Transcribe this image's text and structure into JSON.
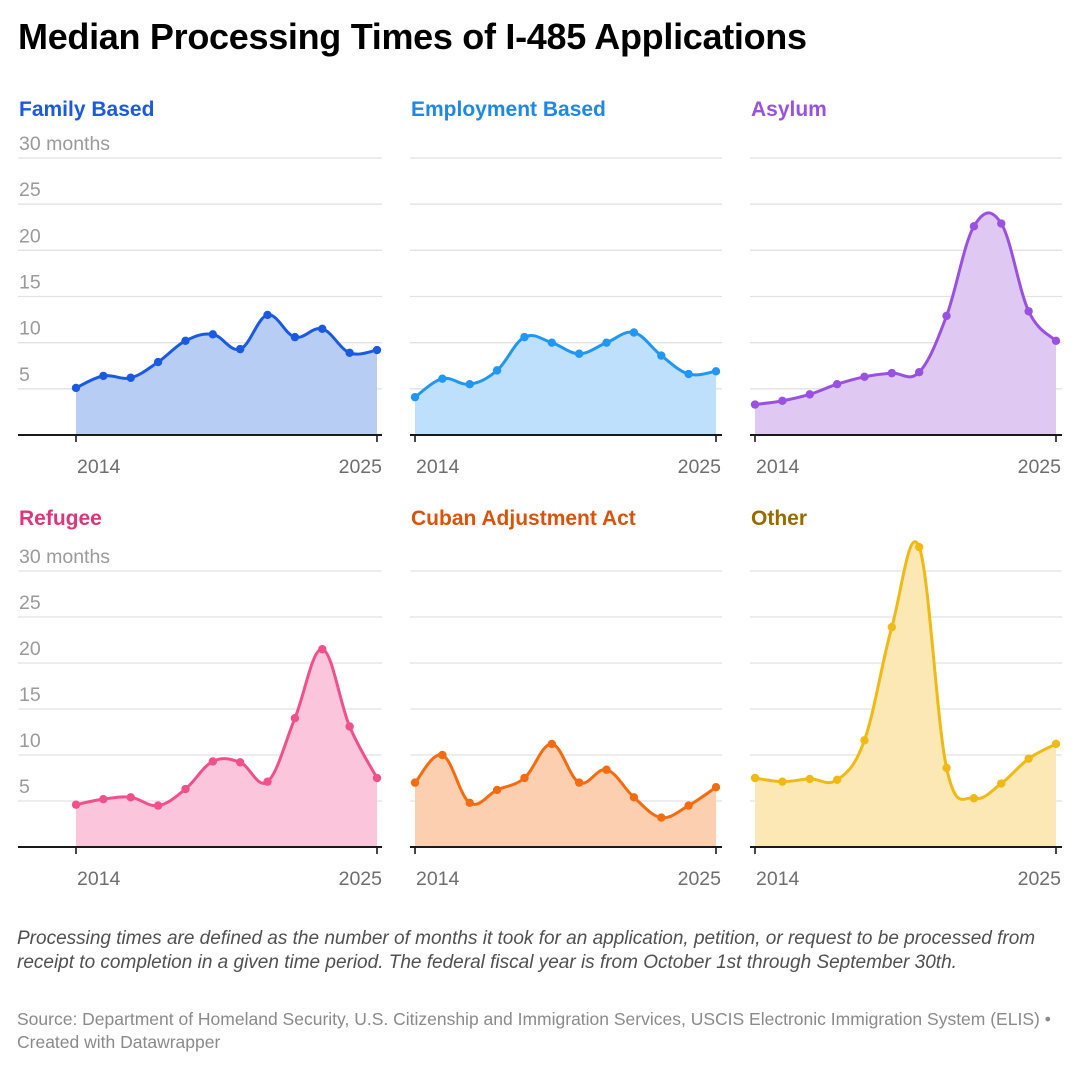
{
  "title": "Median Processing Times of I-485 Applications",
  "notes": "Processing times are defined as the number of months it took for an application, petition, or request to be processed from receipt to completion in a given time period. The federal fiscal year is from October 1st through September 30th.",
  "source": "Source: Department of Homeland Security, U.S. Citizenship and Immigration Services, USCIS Electronic Immigration System (ELIS) • Created with Datawrapper",
  "chart_data": [
    {
      "type": "area",
      "title": "Family Based",
      "color": "#1a5ae0",
      "fill": "#b8cdf3",
      "title_color": "#1a5ae0",
      "x": [
        2014,
        2015,
        2016,
        2017,
        2018,
        2019,
        2020,
        2021,
        2022,
        2023,
        2024,
        2025
      ],
      "values": [
        5.1,
        6.4,
        6.2,
        7.9,
        10.2,
        10.9,
        9.3,
        13.0,
        10.6,
        11.5,
        8.9,
        9.2
      ],
      "ylabel": "months",
      "yticks": [
        5,
        10,
        15,
        20,
        25,
        30
      ],
      "ytick_labels": [
        "5",
        "10",
        "15",
        "20",
        "25",
        "30 months"
      ],
      "xtick_labels": [
        "2014",
        "2025"
      ],
      "ylim": [
        0,
        30
      ],
      "grid": true
    },
    {
      "type": "area",
      "title": "Employment Based",
      "color": "#2196f3",
      "fill": "#bfe0fc",
      "title_color": "#1e88e5",
      "x": [
        2014,
        2015,
        2016,
        2017,
        2018,
        2019,
        2020,
        2021,
        2022,
        2023,
        2024,
        2025
      ],
      "values": [
        4.1,
        6.1,
        5.5,
        7.0,
        10.6,
        10.0,
        8.8,
        10.0,
        11.1,
        8.6,
        6.6,
        6.9
      ],
      "yticks": [
        5,
        10,
        15,
        20,
        25,
        30
      ],
      "xtick_labels": [
        "2014",
        "2025"
      ],
      "ylim": [
        0,
        30
      ],
      "grid": true
    },
    {
      "type": "area",
      "title": "Asylum",
      "color": "#9b51e0",
      "fill": "#dfc9f3",
      "title_color": "#9b51e0",
      "x": [
        2014,
        2015,
        2016,
        2017,
        2018,
        2019,
        2020,
        2021,
        2022,
        2023,
        2024,
        2025
      ],
      "values": [
        3.3,
        3.7,
        4.4,
        5.5,
        6.3,
        6.7,
        6.8,
        12.9,
        22.6,
        22.9,
        13.4,
        10.2
      ],
      "yticks": [
        5,
        10,
        15,
        20,
        25,
        30
      ],
      "xtick_labels": [
        "2014",
        "2025"
      ],
      "ylim": [
        0,
        30
      ],
      "grid": true
    },
    {
      "type": "area",
      "title": "Refugee",
      "color": "#f0508c",
      "fill": "#fbc6dc",
      "title_color": "#e0357a",
      "x": [
        2014,
        2015,
        2016,
        2017,
        2018,
        2019,
        2020,
        2021,
        2022,
        2023,
        2024,
        2025
      ],
      "values": [
        4.6,
        5.2,
        5.4,
        4.5,
        6.3,
        9.3,
        9.2,
        7.1,
        14.0,
        21.5,
        13.1,
        7.5
      ],
      "ylabel": "months",
      "yticks": [
        5,
        10,
        15,
        20,
        25,
        30
      ],
      "ytick_labels": [
        "5",
        "10",
        "15",
        "20",
        "25",
        "30 months"
      ],
      "xtick_labels": [
        "2014",
        "2025"
      ],
      "ylim": [
        0,
        30
      ],
      "grid": true
    },
    {
      "type": "area",
      "title": "Cuban Adjustment Act",
      "color": "#f36c12",
      "fill": "#fccfb0",
      "title_color": "#d9530a",
      "x": [
        2014,
        2015,
        2016,
        2017,
        2018,
        2019,
        2020,
        2021,
        2022,
        2023,
        2024,
        2025
      ],
      "values": [
        7.0,
        10.0,
        4.8,
        6.2,
        7.5,
        11.2,
        7.0,
        8.4,
        5.4,
        3.2,
        4.5,
        6.5
      ],
      "yticks": [
        5,
        10,
        15,
        20,
        25,
        30
      ],
      "xtick_labels": [
        "2014",
        "2025"
      ],
      "ylim": [
        0,
        30
      ],
      "grid": true
    },
    {
      "type": "area",
      "title": "Other",
      "color": "#f0b915",
      "fill": "#fbe8b5",
      "title_color": "#9a6a00",
      "x": [
        2014,
        2015,
        2016,
        2017,
        2018,
        2019,
        2020,
        2021,
        2022,
        2023,
        2024,
        2025
      ],
      "values": [
        7.5,
        7.1,
        7.4,
        7.3,
        11.6,
        23.9,
        32.6,
        8.6,
        5.3,
        6.9,
        9.6,
        11.2
      ],
      "yticks": [
        5,
        10,
        15,
        20,
        25,
        30
      ],
      "xtick_labels": [
        "2014",
        "2025"
      ],
      "ylim": [
        0,
        30
      ],
      "grid": true
    }
  ]
}
